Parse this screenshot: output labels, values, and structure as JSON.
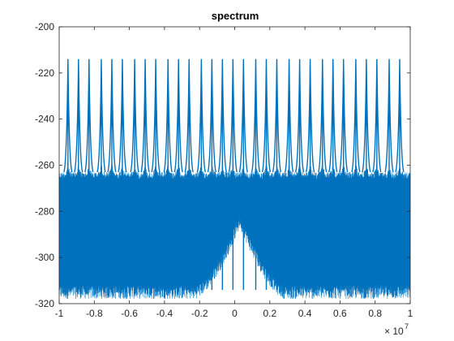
{
  "chart_data": {
    "type": "line",
    "title": "spectrum",
    "xlabel": "",
    "ylabel": "",
    "xlim": [
      -10000000,
      10000000
    ],
    "ylim": [
      -320,
      -200
    ],
    "x_ticks": [
      -10000000,
      -8000000,
      -6000000,
      -4000000,
      -2000000,
      0,
      2000000,
      4000000,
      6000000,
      8000000,
      10000000
    ],
    "x_tick_labels": [
      "-1",
      "-0.8",
      "-0.6",
      "-0.4",
      "-0.2",
      "0",
      "0.2",
      "0.4",
      "0.6",
      "0.8",
      "1"
    ],
    "x_exponent_base": "× 10",
    "x_exponent_power": "7",
    "y_ticks": [
      -320,
      -300,
      -280,
      -260,
      -240,
      -220,
      -200
    ],
    "y_tick_labels": [
      "-320",
      "-300",
      "-280",
      "-260",
      "-240",
      "-220",
      "-200"
    ],
    "grid": false,
    "legend": "none",
    "line_color": "#0072BD",
    "series": [
      {
        "peak_x": [
          -9500000,
          -8900000,
          -8300000,
          -7600000,
          -7000000,
          -6400000,
          -5700000,
          -5100000,
          -4500000,
          -3800000,
          -3200000,
          -2600000,
          -1900000,
          -1300000,
          -700000,
          -100000,
          500000,
          1200000,
          1800000,
          2400000,
          3100000,
          3700000,
          4300000,
          5000000,
          5600000,
          6200000,
          6900000,
          7500000,
          8100000,
          8800000,
          9400000
        ],
        "peak_y": [
          -214,
          -214,
          -214,
          -214,
          -214,
          -214,
          -214,
          -214,
          -214,
          -214,
          -214,
          -214,
          -214,
          -214,
          -214,
          -214,
          -214,
          -214,
          -214,
          -214,
          -214,
          -214,
          -214,
          -214,
          -214,
          -214,
          -214,
          -214,
          -214,
          -214,
          -214
        ],
        "band_top": -263,
        "band_bottom": -318,
        "center_hump_peak": -287
      }
    ]
  }
}
